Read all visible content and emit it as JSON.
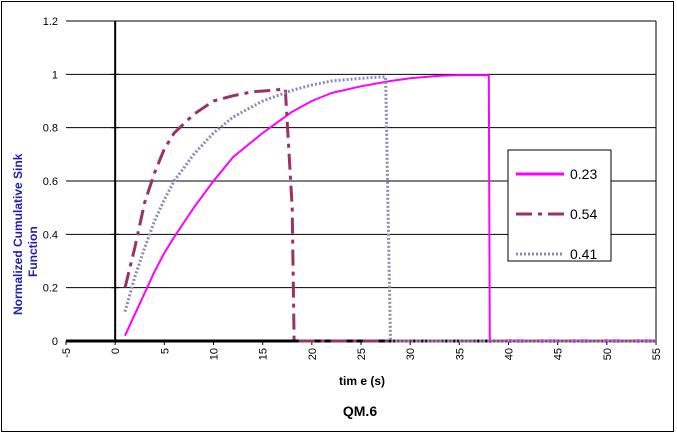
{
  "chart_data": {
    "type": "line",
    "title": "",
    "caption": "QM.6",
    "xlabel": "tim e (s)",
    "ylabel": "Normalized Cumulative Sink Function",
    "ylabel_lines": [
      "Normalized Cumulative Sink",
      "Function"
    ],
    "xlim": [
      -5,
      55
    ],
    "ylim": [
      0,
      1.2
    ],
    "x_ticks": [
      -5,
      0,
      5,
      10,
      15,
      20,
      25,
      30,
      35,
      40,
      45,
      50,
      55
    ],
    "x_tick_labels": [
      "-5",
      "0",
      "5",
      "10",
      "15",
      "20",
      "25",
      "30",
      "35",
      "40",
      "45",
      "50",
      "55"
    ],
    "y_ticks": [
      0,
      0.2,
      0.4,
      0.6,
      0.8,
      1.0,
      1.2
    ],
    "y_tick_labels": [
      "0",
      "0.2",
      "0.4",
      "0.6",
      "0.8",
      "1",
      "1.2"
    ],
    "grid": "horizontal",
    "legend_position": "right",
    "series": [
      {
        "name": "0.23",
        "color": "#ff00ff",
        "style": "solid",
        "x": [
          1,
          2,
          3,
          4,
          5,
          6,
          8,
          10,
          12,
          15,
          18,
          20,
          22,
          25,
          28,
          30,
          33,
          35,
          37,
          38,
          38.1,
          40,
          45,
          50,
          55
        ],
        "y": [
          0.02,
          0.1,
          0.18,
          0.26,
          0.33,
          0.39,
          0.5,
          0.6,
          0.69,
          0.78,
          0.86,
          0.9,
          0.93,
          0.955,
          0.975,
          0.985,
          0.995,
          0.997,
          0.997,
          0.997,
          0.0,
          0.0,
          0.0,
          0.0,
          0.0
        ]
      },
      {
        "name": "0.54",
        "color": "#993366",
        "style": "dashed",
        "x": [
          1,
          2,
          3,
          4,
          5,
          6,
          8,
          10,
          12,
          14,
          16,
          17.3,
          18,
          18.2,
          20,
          25,
          30,
          40,
          50,
          55
        ],
        "y": [
          0.2,
          0.35,
          0.52,
          0.63,
          0.72,
          0.78,
          0.85,
          0.9,
          0.92,
          0.935,
          0.94,
          0.945,
          0.5,
          0.0,
          0.0,
          0.0,
          0.0,
          0.0,
          0.0,
          0.0
        ]
      },
      {
        "name": "0.41",
        "color": "#8a8ab8",
        "style": "dotted",
        "x": [
          1,
          2,
          3,
          4,
          5,
          6,
          8,
          10,
          12,
          15,
          18,
          20,
          22,
          25,
          27,
          27.5,
          28,
          28.1,
          30,
          40,
          50,
          55
        ],
        "y": [
          0.11,
          0.24,
          0.35,
          0.45,
          0.53,
          0.6,
          0.7,
          0.78,
          0.84,
          0.9,
          0.94,
          0.96,
          0.975,
          0.985,
          0.99,
          0.99,
          0.0,
          0.0,
          0.0,
          0.0,
          0.0,
          0.0
        ]
      }
    ]
  }
}
